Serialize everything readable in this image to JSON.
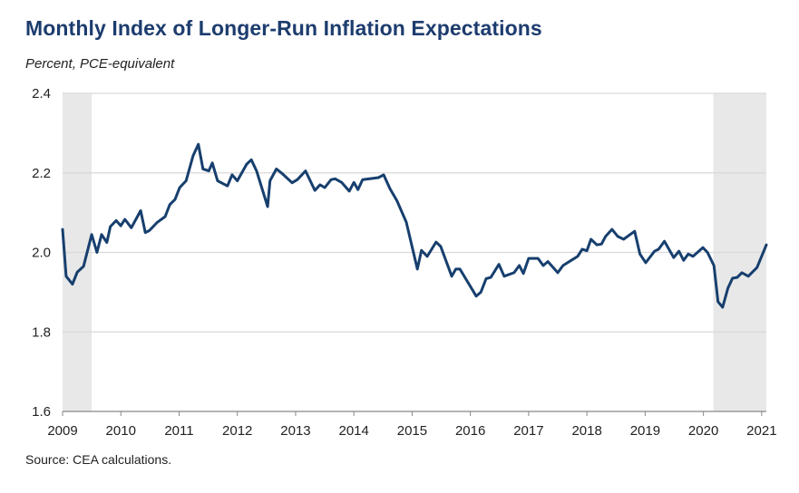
{
  "chart_data": {
    "type": "line",
    "title": "Monthly Index of Longer-Run Inflation Expectations",
    "subtitle": "Percent, PCE-equivalent",
    "source": "Source: CEA calculations.",
    "xlabel": "",
    "ylabel": "",
    "xlim": [
      2009,
      2021.08
    ],
    "ylim": [
      1.6,
      2.4
    ],
    "x_ticks": [
      "2009",
      "2010",
      "2011",
      "2012",
      "2013",
      "2014",
      "2015",
      "2016",
      "2017",
      "2018",
      "2019",
      "2020",
      "2021"
    ],
    "y_ticks": [
      "1.6",
      "1.8",
      "2.0",
      "2.2",
      "2.4"
    ],
    "grid": "horizontal",
    "line_color": "#173f6e",
    "shading_color": "#e8e8e8",
    "shaded_periods": [
      [
        2009.0,
        2009.5
      ],
      [
        2020.17,
        2021.08
      ]
    ],
    "series": [
      {
        "x": [
          2009.0,
          2009.06,
          2009.17,
          2009.25,
          2009.36,
          2009.5,
          2009.59,
          2009.67,
          2009.76,
          2009.82,
          2009.92,
          2010.0,
          2010.07,
          2010.18,
          2010.34,
          2010.42,
          2010.49,
          2010.62,
          2010.76,
          2010.84,
          2010.93,
          2011.01,
          2011.12,
          2011.24,
          2011.33,
          2011.41,
          2011.51,
          2011.57,
          2011.66,
          2011.83,
          2011.91,
          2012.0,
          2012.16,
          2012.24,
          2012.33,
          2012.52,
          2012.56,
          2012.67,
          2012.78,
          2012.94,
          2013.03,
          2013.17,
          2013.33,
          2013.42,
          2013.5,
          2013.61,
          2013.68,
          2013.79,
          2013.92,
          2014.0,
          2014.07,
          2014.15,
          2014.42,
          2014.51,
          2014.62,
          2014.74,
          2014.9,
          2015.09,
          2015.16,
          2015.26,
          2015.41,
          2015.49,
          2015.68,
          2015.75,
          2015.82,
          2016.1,
          2016.18,
          2016.27,
          2016.35,
          2016.49,
          2016.58,
          2016.75,
          2016.84,
          2016.91,
          2017.0,
          2017.16,
          2017.25,
          2017.33,
          2017.5,
          2017.59,
          2017.73,
          2017.84,
          2017.92,
          2018.0,
          2018.07,
          2018.17,
          2018.25,
          2018.32,
          2018.43,
          2018.53,
          2018.63,
          2018.82,
          2018.91,
          2019.01,
          2019.16,
          2019.23,
          2019.33,
          2019.49,
          2019.58,
          2019.66,
          2019.74,
          2019.82,
          2019.99,
          2020.07,
          2020.18,
          2020.25,
          2020.33,
          2020.42,
          2020.5,
          2020.58,
          2020.66,
          2020.77,
          2020.92,
          2021.08
        ],
        "y": [
          2.058,
          1.94,
          1.92,
          1.95,
          1.965,
          2.045,
          2.0,
          2.045,
          2.025,
          2.065,
          2.08,
          2.067,
          2.083,
          2.062,
          2.105,
          2.05,
          2.055,
          2.075,
          2.09,
          2.12,
          2.133,
          2.163,
          2.18,
          2.243,
          2.272,
          2.21,
          2.205,
          2.225,
          2.18,
          2.167,
          2.195,
          2.18,
          2.222,
          2.233,
          2.205,
          2.115,
          2.18,
          2.21,
          2.197,
          2.175,
          2.183,
          2.205,
          2.156,
          2.17,
          2.163,
          2.183,
          2.185,
          2.176,
          2.154,
          2.176,
          2.158,
          2.183,
          2.188,
          2.195,
          2.16,
          2.13,
          2.076,
          1.958,
          2.005,
          1.99,
          2.026,
          2.015,
          1.94,
          1.958,
          1.958,
          1.89,
          1.9,
          1.934,
          1.937,
          1.97,
          1.94,
          1.949,
          1.967,
          1.947,
          1.985,
          1.985,
          1.967,
          1.977,
          1.949,
          1.967,
          1.98,
          1.99,
          2.008,
          2.004,
          2.033,
          2.019,
          2.021,
          2.04,
          2.058,
          2.04,
          2.033,
          2.053,
          1.996,
          1.974,
          2.003,
          2.008,
          2.028,
          1.987,
          2.003,
          1.98,
          1.996,
          1.99,
          2.012,
          2.0,
          1.967,
          1.876,
          1.862,
          1.91,
          1.935,
          1.937,
          1.949,
          1.94,
          1.962,
          2.019
        ]
      }
    ]
  }
}
